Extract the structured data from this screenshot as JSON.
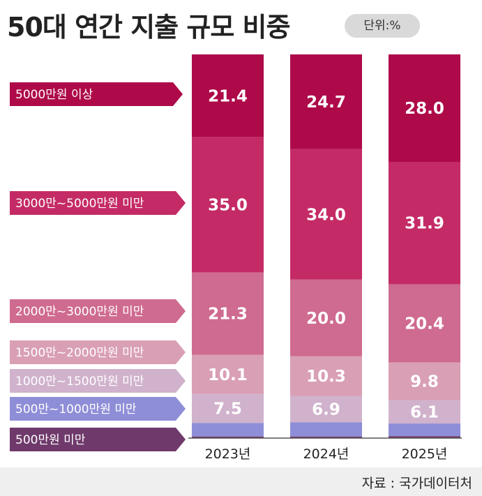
{
  "title": "50대 연간 지출 규모 비중",
  "unit": "단위:%",
  "source": "자료 : 국가데이터처",
  "colors": [
    "#ae0a4a",
    "#c42b66",
    "#cf6b90",
    "#d99fb5",
    "#d0b2cc",
    "#8e8ed8",
    "#6f3a6b"
  ],
  "chart_data": {
    "type": "bar",
    "stacked": true,
    "categories": [
      "2023년",
      "2024년",
      "2025년"
    ],
    "series": [
      {
        "name": "5000만원 이상",
        "values": [
          21.4,
          24.7,
          28.0
        ],
        "labels": [
          "21.4",
          "24.7",
          "28.0"
        ]
      },
      {
        "name": "3000만~5000만원 미만",
        "values": [
          35.0,
          34.0,
          31.9
        ],
        "labels": [
          "35.0",
          "34.0",
          "31.9"
        ]
      },
      {
        "name": "2000만~3000만원 미만",
        "values": [
          21.3,
          20.0,
          20.4
        ],
        "labels": [
          "21.3",
          "20.0",
          "20.4"
        ]
      },
      {
        "name": "1500만~2000만원 미만",
        "values": [
          10.1,
          10.3,
          9.8
        ],
        "labels": [
          "10.1",
          "10.3",
          "9.8"
        ]
      },
      {
        "name": "1000만~1500만원 미만",
        "values": [
          7.5,
          6.9,
          6.1
        ],
        "labels": [
          "7.5",
          "6.9",
          "6.1"
        ]
      },
      {
        "name": "500만~1000만원 미만",
        "values": [
          3.5,
          3.7,
          3.3
        ],
        "labels": [
          "",
          "",
          ""
        ]
      },
      {
        "name": "500만원 미만",
        "values": [
          0.4,
          0.4,
          0.5
        ],
        "labels": [
          "",
          "",
          ""
        ]
      }
    ],
    "ylim": [
      0,
      100
    ],
    "grid": false,
    "legend": "left"
  }
}
